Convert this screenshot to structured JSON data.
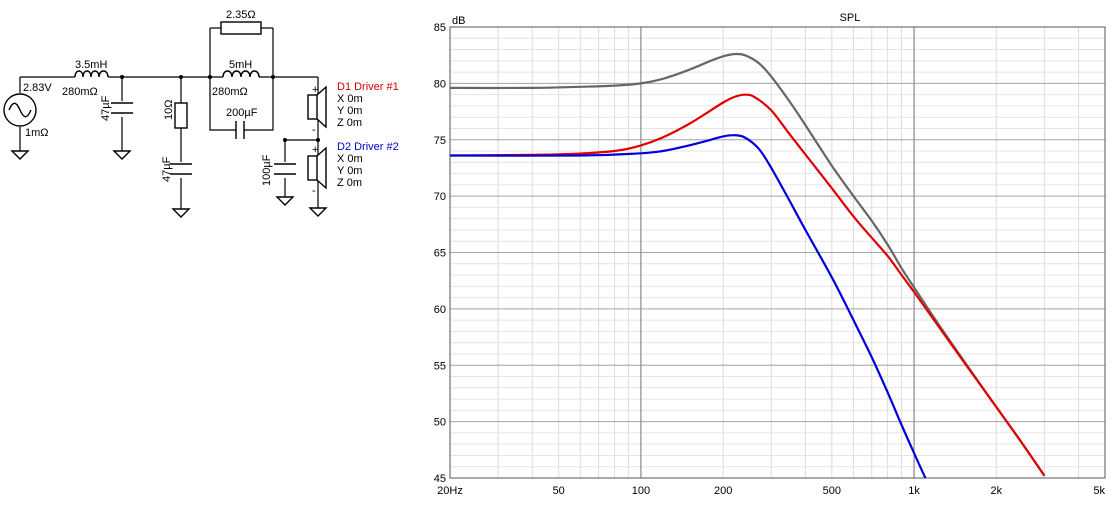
{
  "schematic": {
    "source": {
      "voltage": "2.83V",
      "resistance": "1mΩ"
    },
    "series_inductor": {
      "value": "3.5mH",
      "resistance": "280mΩ"
    },
    "shunt_cap_1": {
      "value": "47µF"
    },
    "shunt_resistor": {
      "value": "10Ω"
    },
    "shunt_cap_2": {
      "value": "47µF"
    },
    "bridge_resistor": {
      "value": "2.35Ω"
    },
    "inductor_2": {
      "value": "5mH",
      "resistance": "280mΩ"
    },
    "series_cap": {
      "value": "200µF"
    },
    "driver_cap": {
      "value": "100µF"
    },
    "drivers": [
      {
        "name": "D1 Driver #1",
        "x": "X 0m",
        "y": "Y 0m",
        "z": "Z 0m",
        "color": "#d00000"
      },
      {
        "name": "D2 Driver #2",
        "x": "X 0m",
        "y": "Y 0m",
        "z": "Z 0m",
        "color": "#0000c8"
      }
    ],
    "plus_sign": "+",
    "minus_sign": "-"
  },
  "chart_data": {
    "type": "line",
    "title": "SPL",
    "ylabel": "dB",
    "xscale": "log",
    "xlim": [
      20,
      5000
    ],
    "ylim": [
      45,
      85
    ],
    "xticks": [
      {
        "value": 20,
        "label": "20Hz"
      },
      {
        "value": 50,
        "label": "50"
      },
      {
        "value": 100,
        "label": "100"
      },
      {
        "value": 200,
        "label": "200"
      },
      {
        "value": 500,
        "label": "500"
      },
      {
        "value": 1000,
        "label": "1k"
      },
      {
        "value": 2000,
        "label": "2k"
      },
      {
        "value": 5000,
        "label": "5k"
      }
    ],
    "yticks": [
      {
        "value": 45,
        "label": "45"
      },
      {
        "value": 50,
        "label": "50"
      },
      {
        "value": 55,
        "label": "55"
      },
      {
        "value": 60,
        "label": "60"
      },
      {
        "value": 65,
        "label": "65"
      },
      {
        "value": 70,
        "label": "70"
      },
      {
        "value": 75,
        "label": "75"
      },
      {
        "value": 80,
        "label": "80"
      },
      {
        "value": 85,
        "label": "85"
      }
    ],
    "grid": true,
    "series": [
      {
        "color": "#666666",
        "points": [
          [
            20,
            79.6
          ],
          [
            40,
            79.6
          ],
          [
            60,
            79.7
          ],
          [
            80,
            79.8
          ],
          [
            100,
            80.0
          ],
          [
            120,
            80.4
          ],
          [
            150,
            81.2
          ],
          [
            180,
            82.0
          ],
          [
            200,
            82.4
          ],
          [
            220,
            82.6
          ],
          [
            240,
            82.5
          ],
          [
            270,
            81.8
          ],
          [
            300,
            80.6
          ],
          [
            350,
            78.4
          ],
          [
            400,
            76.3
          ],
          [
            500,
            72.7
          ],
          [
            600,
            70.0
          ],
          [
            700,
            67.8
          ],
          [
            800,
            65.7
          ],
          [
            900,
            63.6
          ],
          [
            1000,
            61.9
          ],
          [
            1200,
            59.0
          ],
          [
            1500,
            55.6
          ],
          [
            2000,
            51.3
          ],
          [
            2500,
            48.0
          ],
          [
            3000,
            45.2
          ]
        ]
      },
      {
        "color": "#e00000",
        "points": [
          [
            20,
            73.6
          ],
          [
            50,
            73.7
          ],
          [
            80,
            74.0
          ],
          [
            100,
            74.5
          ],
          [
            120,
            75.2
          ],
          [
            150,
            76.4
          ],
          [
            180,
            77.6
          ],
          [
            200,
            78.3
          ],
          [
            220,
            78.8
          ],
          [
            240,
            79.0
          ],
          [
            260,
            78.8
          ],
          [
            300,
            77.6
          ],
          [
            350,
            75.5
          ],
          [
            400,
            73.7
          ],
          [
            500,
            70.7
          ],
          [
            600,
            68.2
          ],
          [
            700,
            66.3
          ],
          [
            800,
            64.7
          ],
          [
            900,
            63.0
          ],
          [
            1000,
            61.5
          ],
          [
            1200,
            58.8
          ],
          [
            1500,
            55.5
          ],
          [
            2000,
            51.3
          ],
          [
            2500,
            48.0
          ],
          [
            3000,
            45.2
          ]
        ]
      },
      {
        "color": "#0000dd",
        "points": [
          [
            20,
            73.6
          ],
          [
            60,
            73.6
          ],
          [
            100,
            73.8
          ],
          [
            120,
            74.0
          ],
          [
            150,
            74.5
          ],
          [
            180,
            75.0
          ],
          [
            200,
            75.3
          ],
          [
            220,
            75.4
          ],
          [
            240,
            75.2
          ],
          [
            270,
            74.2
          ],
          [
            300,
            72.5
          ],
          [
            350,
            69.6
          ],
          [
            400,
            67.0
          ],
          [
            500,
            62.8
          ],
          [
            600,
            59.0
          ],
          [
            700,
            55.7
          ],
          [
            800,
            52.6
          ],
          [
            900,
            49.7
          ],
          [
            1000,
            47.2
          ],
          [
            1100,
            45.0
          ]
        ]
      }
    ]
  }
}
